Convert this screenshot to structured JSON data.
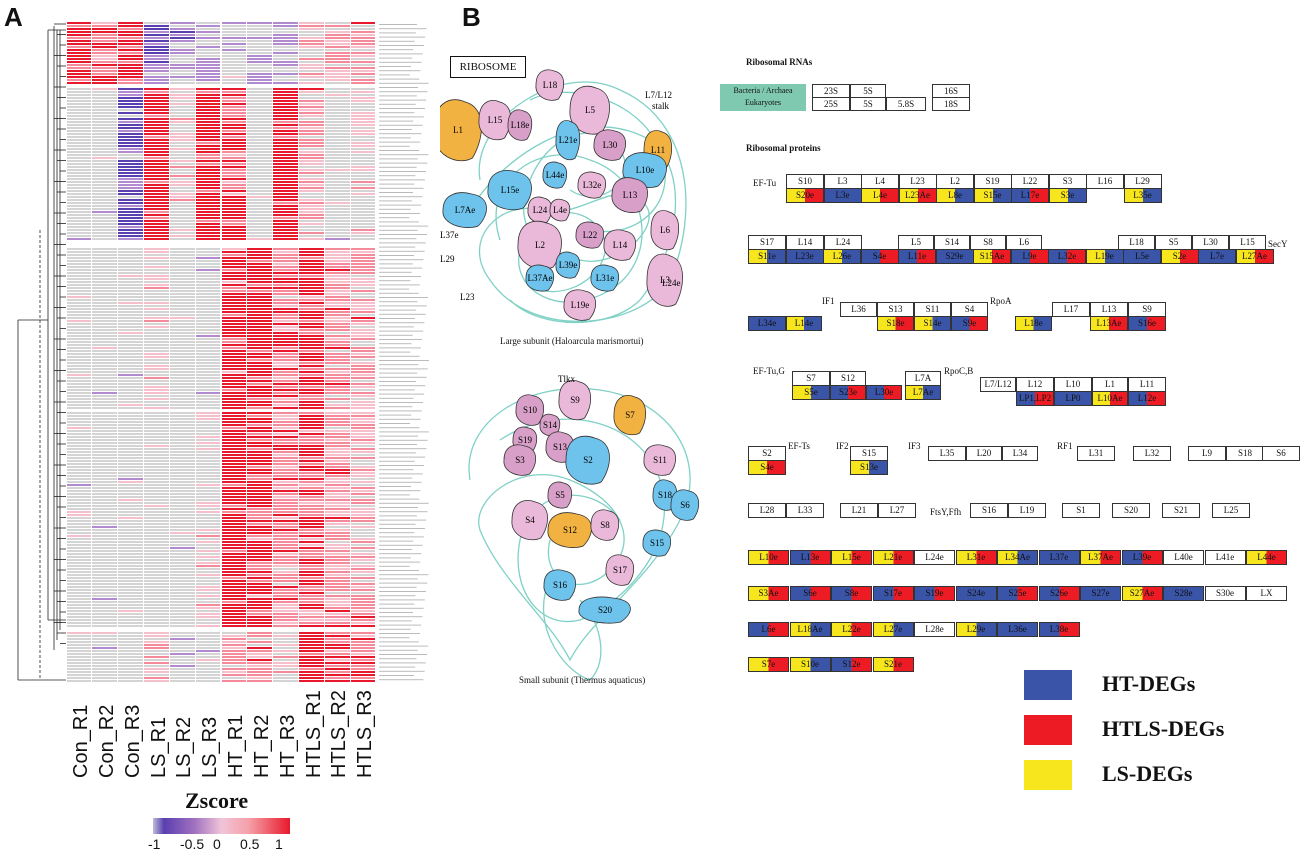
{
  "panels": {
    "a": "A",
    "b": "B"
  },
  "heatmap": {
    "columns": [
      "Con_R1",
      "Con_R2",
      "Con_R3",
      "LS_R1",
      "LS_R2",
      "LS_R3",
      "HT_R1",
      "HT_R2",
      "HT_R3",
      "HTLS_R1",
      "HTLS_R2",
      "HTLS_R3"
    ],
    "legend_title": "Zscore",
    "legend_ticks": [
      "-1",
      "-0.5",
      "0",
      "0.5",
      "1"
    ],
    "colors": {
      "low": "#3a3ab0",
      "mid": "#f0c4d8",
      "high": "#e8192c",
      "none": "#cfcfcf"
    }
  },
  "diagram": {
    "ribosome_label": "RIBOSOME",
    "large_subunit_caption": "Large subunit (Haloarcula marismortui)",
    "small_subunit_caption": "Small subunit (Thermus aquaticus)",
    "stalk_label": "L7/L12\nstalk",
    "tlkx_label": "Tlkx",
    "rrna_header": "Ribosomal RNAs",
    "rprot_header": "Ribosomal proteins",
    "bact_label": "Bacteria / Archaea\nEukaryotes",
    "rrna_row1": [
      "23S",
      "5S",
      "",
      "16S"
    ],
    "rrna_row2": [
      "25S",
      "5S",
      "5.8S",
      "18S"
    ],
    "side_labels": [
      "EF-Tu",
      "SecY",
      "IF1",
      "RpoA",
      "EF-Tu,G",
      "RpoC,B",
      "EF-Ts",
      "IF2",
      "IF3",
      "RF1",
      "FtsY,Ffh"
    ]
  },
  "legend": {
    "items": [
      {
        "label": "HT-DEGs",
        "color": "#3a54a8"
      },
      {
        "label": "HTLS-DEGs",
        "color": "#ed1c24"
      },
      {
        "label": "LS-DEGs",
        "color": "#f7e51e"
      }
    ]
  }
}
